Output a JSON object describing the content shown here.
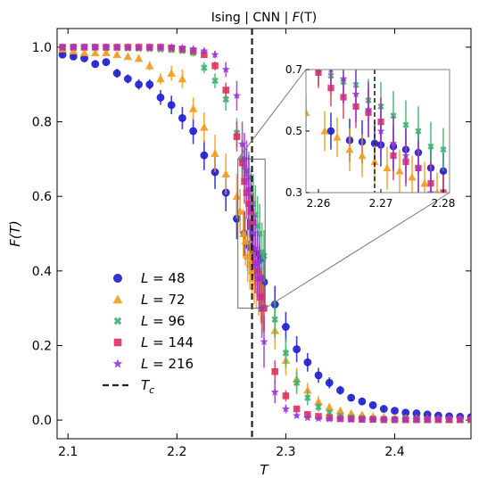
{
  "chart_data": {
    "type": "scatter",
    "title": "Ising | CNN | F(T)",
    "xlabel": "T",
    "ylabel": "F(T)",
    "xlim": [
      2.09,
      2.47
    ],
    "ylim": [
      -0.05,
      1.05
    ],
    "xticks": [
      2.1,
      2.2,
      2.3,
      2.4
    ],
    "xtick_labels": [
      "2.1",
      "2.2",
      "2.3",
      "2.4"
    ],
    "yticks": [
      0.0,
      0.2,
      0.4,
      0.6,
      0.8,
      1.0
    ],
    "ytick_labels": [
      "0.0",
      "0.2",
      "0.4",
      "0.6",
      "0.8",
      "1.0"
    ],
    "grid": false,
    "legend_position": "lower-left",
    "critical_temperature": 2.269,
    "series": [
      {
        "name": "L = 48",
        "color": "#1f1fd1",
        "marker": "circle",
        "x": [
          2.095,
          2.105,
          2.115,
          2.125,
          2.135,
          2.145,
          2.155,
          2.165,
          2.175,
          2.185,
          2.195,
          2.205,
          2.215,
          2.225,
          2.235,
          2.245,
          2.255,
          2.262,
          2.265,
          2.267,
          2.269,
          2.27,
          2.272,
          2.274,
          2.276,
          2.278,
          2.28,
          2.29,
          2.3,
          2.31,
          2.32,
          2.33,
          2.34,
          2.35,
          2.36,
          2.37,
          2.38,
          2.39,
          2.4,
          2.41,
          2.42,
          2.43,
          2.44,
          2.45,
          2.46,
          2.47
        ],
        "y": [
          0.98,
          0.975,
          0.97,
          0.955,
          0.96,
          0.93,
          0.915,
          0.9,
          0.9,
          0.865,
          0.845,
          0.81,
          0.775,
          0.71,
          0.665,
          0.61,
          0.54,
          0.5,
          0.47,
          0.465,
          0.46,
          0.455,
          0.45,
          0.44,
          0.43,
          0.38,
          0.37,
          0.31,
          0.25,
          0.19,
          0.155,
          0.12,
          0.1,
          0.08,
          0.06,
          0.05,
          0.04,
          0.03,
          0.025,
          0.02,
          0.018,
          0.015,
          0.012,
          0.01,
          0.009,
          0.008
        ],
        "err": [
          0.006,
          0.008,
          0.008,
          0.01,
          0.01,
          0.012,
          0.012,
          0.014,
          0.014,
          0.02,
          0.025,
          0.03,
          0.035,
          0.04,
          0.045,
          0.05,
          0.055,
          0.06,
          0.07,
          0.07,
          0.07,
          0.07,
          0.07,
          0.07,
          0.07,
          0.07,
          0.06,
          0.05,
          0.04,
          0.035,
          0.025,
          0.02,
          0.015,
          0.012,
          0.01,
          0.008,
          0.007,
          0.006,
          0.005,
          0.005,
          0.004,
          0.004,
          0.004,
          0.003,
          0.003,
          0.003
        ]
      },
      {
        "name": "L = 72",
        "color": "#f39c1d",
        "marker": "triangle",
        "x": [
          2.095,
          2.105,
          2.115,
          2.125,
          2.135,
          2.145,
          2.155,
          2.165,
          2.175,
          2.185,
          2.195,
          2.205,
          2.215,
          2.225,
          2.235,
          2.245,
          2.255,
          2.258,
          2.261,
          2.263,
          2.265,
          2.267,
          2.269,
          2.271,
          2.273,
          2.275,
          2.277,
          2.279,
          2.29,
          2.3,
          2.31,
          2.32,
          2.33,
          2.34,
          2.35,
          2.36,
          2.37,
          2.38,
          2.39,
          2.4,
          2.41,
          2.42,
          2.43,
          2.44,
          2.45,
          2.46,
          2.47
        ],
        "y": [
          0.995,
          0.99,
          0.985,
          0.985,
          0.985,
          0.98,
          0.975,
          0.97,
          0.95,
          0.915,
          0.93,
          0.915,
          0.835,
          0.785,
          0.715,
          0.66,
          0.6,
          0.56,
          0.5,
          0.48,
          0.44,
          0.42,
          0.4,
          0.38,
          0.37,
          0.35,
          0.33,
          0.3,
          0.24,
          0.16,
          0.11,
          0.08,
          0.05,
          0.035,
          0.025,
          0.018,
          0.014,
          0.01,
          0.008,
          0.006,
          0.005,
          0.004,
          0.003,
          0.003,
          0.002,
          0.002,
          0.002
        ],
        "err": [
          0.003,
          0.004,
          0.004,
          0.005,
          0.005,
          0.006,
          0.008,
          0.01,
          0.012,
          0.015,
          0.02,
          0.025,
          0.03,
          0.04,
          0.05,
          0.055,
          0.06,
          0.06,
          0.065,
          0.065,
          0.07,
          0.07,
          0.07,
          0.07,
          0.07,
          0.07,
          0.07,
          0.065,
          0.05,
          0.04,
          0.03,
          0.02,
          0.015,
          0.01,
          0.008,
          0.006,
          0.005,
          0.004,
          0.003,
          0.003,
          0.002,
          0.002,
          0.002,
          0.002,
          0.002,
          0.002,
          0.002
        ]
      },
      {
        "name": "L = 96",
        "color": "#3cb371",
        "marker": "x",
        "x": [
          2.095,
          2.105,
          2.115,
          2.125,
          2.135,
          2.145,
          2.155,
          2.165,
          2.175,
          2.185,
          2.195,
          2.205,
          2.215,
          2.225,
          2.235,
          2.245,
          2.255,
          2.26,
          2.262,
          2.264,
          2.266,
          2.268,
          2.27,
          2.272,
          2.274,
          2.276,
          2.278,
          2.28,
          2.29,
          2.3,
          2.31,
          2.32,
          2.33,
          2.34,
          2.35,
          2.36,
          2.37,
          2.38,
          2.39,
          2.4,
          2.41,
          2.42,
          2.43,
          2.44,
          2.45,
          2.46,
          2.47
        ],
        "y": [
          1.0,
          1.0,
          1.0,
          1.0,
          0.998,
          0.998,
          0.997,
          0.996,
          0.995,
          0.994,
          0.992,
          0.99,
          0.985,
          0.945,
          0.91,
          0.86,
          0.77,
          0.7,
          0.68,
          0.66,
          0.65,
          0.6,
          0.58,
          0.55,
          0.52,
          0.5,
          0.45,
          0.44,
          0.27,
          0.18,
          0.1,
          0.06,
          0.035,
          0.02,
          0.012,
          0.008,
          0.006,
          0.004,
          0.003,
          0.002,
          0.002,
          0.001,
          0.001,
          0.001,
          0.001,
          0.001,
          0.001
        ],
        "err": [
          0.001,
          0.001,
          0.001,
          0.001,
          0.002,
          0.002,
          0.002,
          0.003,
          0.003,
          0.004,
          0.005,
          0.006,
          0.01,
          0.015,
          0.02,
          0.03,
          0.04,
          0.05,
          0.06,
          0.07,
          0.07,
          0.07,
          0.08,
          0.08,
          0.08,
          0.08,
          0.08,
          0.07,
          0.05,
          0.04,
          0.03,
          0.02,
          0.012,
          0.008,
          0.005,
          0.004,
          0.003,
          0.002,
          0.002,
          0.001,
          0.001,
          0.001,
          0.001,
          0.001,
          0.001,
          0.001,
          0.001
        ]
      },
      {
        "name": "L = 144",
        "color": "#e0325a",
        "marker": "square",
        "x": [
          2.095,
          2.105,
          2.115,
          2.125,
          2.135,
          2.145,
          2.155,
          2.165,
          2.175,
          2.185,
          2.195,
          2.205,
          2.215,
          2.225,
          2.235,
          2.245,
          2.255,
          2.26,
          2.262,
          2.264,
          2.266,
          2.268,
          2.27,
          2.272,
          2.274,
          2.276,
          2.278,
          2.28,
          2.29,
          2.3,
          2.31,
          2.32,
          2.33,
          2.34,
          2.35,
          2.36,
          2.37,
          2.38,
          2.39,
          2.4,
          2.41,
          2.42,
          2.43,
          2.44,
          2.45,
          2.46,
          2.47
        ],
        "y": [
          1.0,
          1.0,
          1.0,
          1.0,
          1.0,
          1.0,
          1.0,
          1.0,
          1.0,
          1.0,
          0.998,
          0.995,
          0.99,
          0.98,
          0.95,
          0.885,
          0.76,
          0.69,
          0.64,
          0.61,
          0.58,
          0.56,
          0.53,
          0.42,
          0.4,
          0.38,
          0.33,
          0.3,
          0.13,
          0.065,
          0.03,
          0.015,
          0.01,
          0.006,
          0.004,
          0.003,
          0.002,
          0.002,
          0.001,
          0.001,
          0.001,
          0.001,
          0.001,
          0.001,
          0.001,
          0.001,
          0.001
        ],
        "err": [
          0.0,
          0.0,
          0.0,
          0.0,
          0.0,
          0.0,
          0.0,
          0.0,
          0.0,
          0.001,
          0.002,
          0.003,
          0.005,
          0.008,
          0.012,
          0.02,
          0.04,
          0.05,
          0.06,
          0.07,
          0.07,
          0.08,
          0.08,
          0.08,
          0.08,
          0.08,
          0.07,
          0.06,
          0.03,
          0.015,
          0.008,
          0.005,
          0.003,
          0.002,
          0.002,
          0.001,
          0.001,
          0.001,
          0.001,
          0.001,
          0.001,
          0.001,
          0.001,
          0.001,
          0.001,
          0.001,
          0.001
        ]
      },
      {
        "name": "L = 216",
        "color": "#9a35d8",
        "marker": "star",
        "x": [
          2.095,
          2.105,
          2.115,
          2.125,
          2.135,
          2.145,
          2.155,
          2.165,
          2.175,
          2.185,
          2.195,
          2.205,
          2.215,
          2.225,
          2.235,
          2.245,
          2.255,
          2.26,
          2.262,
          2.264,
          2.266,
          2.268,
          2.27,
          2.272,
          2.274,
          2.276,
          2.278,
          2.28,
          2.29,
          2.3,
          2.31,
          2.32,
          2.33,
          2.34,
          2.35,
          2.36,
          2.37,
          2.38,
          2.39,
          2.4,
          2.41,
          2.42,
          2.43,
          2.44,
          2.45,
          2.46,
          2.47
        ],
        "y": [
          1.0,
          1.0,
          1.0,
          1.0,
          1.0,
          1.0,
          1.0,
          1.0,
          1.0,
          1.0,
          1.0,
          0.998,
          0.995,
          0.99,
          0.98,
          0.94,
          0.87,
          0.74,
          0.7,
          0.67,
          0.62,
          0.57,
          0.5,
          0.46,
          0.42,
          0.38,
          0.3,
          0.21,
          0.075,
          0.03,
          0.012,
          0.006,
          0.004,
          0.003,
          0.002,
          0.002,
          0.001,
          0.001,
          0.001,
          0.001,
          0.001,
          0.001,
          0.001,
          0.001,
          0.001,
          0.001,
          0.001
        ],
        "err": [
          0.0,
          0.0,
          0.0,
          0.0,
          0.0,
          0.0,
          0.0,
          0.0,
          0.0,
          0.0,
          0.001,
          0.002,
          0.004,
          0.006,
          0.01,
          0.02,
          0.04,
          0.06,
          0.07,
          0.08,
          0.09,
          0.09,
          0.09,
          0.09,
          0.09,
          0.09,
          0.08,
          0.07,
          0.03,
          0.012,
          0.006,
          0.004,
          0.003,
          0.002,
          0.002,
          0.001,
          0.001,
          0.001,
          0.001,
          0.001,
          0.001,
          0.001,
          0.001,
          0.001,
          0.001,
          0.001,
          0.001
        ]
      }
    ],
    "legend_entries": [
      "L = 48",
      "L = 72",
      "L = 96",
      "L = 144",
      "L = 216",
      "T_c"
    ],
    "inset": {
      "xlim": [
        2.258,
        2.281
      ],
      "ylim": [
        0.3,
        0.7
      ],
      "xticks": [
        2.26,
        2.27,
        2.28
      ],
      "xtick_labels": [
        "2.26",
        "2.27",
        "2.28"
      ],
      "yticks": [
        0.3,
        0.5,
        0.7
      ],
      "ytick_labels": [
        "0.3",
        "0.5",
        "0.7"
      ],
      "zoom_region": {
        "x": [
          2.256,
          2.281
        ],
        "y": [
          0.3,
          0.7
        ]
      }
    }
  },
  "labels": {
    "title_plain": "Ising | CNN | ",
    "title_italic": "F",
    "title_tail": "(T)",
    "xlabel": "T",
    "ylabel": "F(T)",
    "legend_tc": "T"
  }
}
